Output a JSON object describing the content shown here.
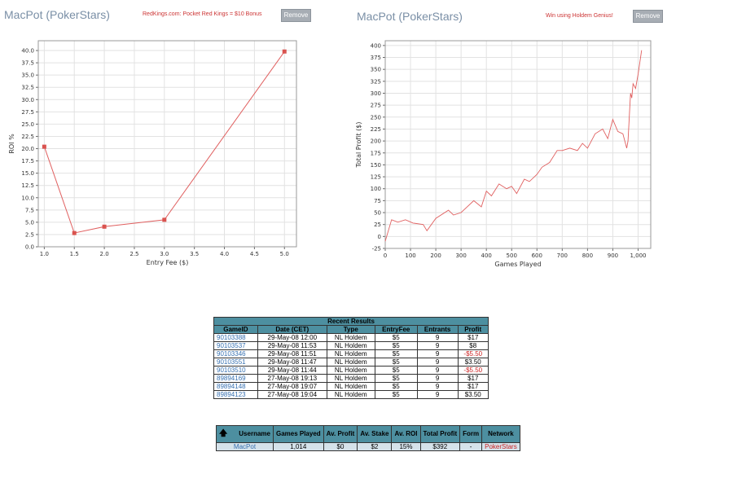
{
  "left_panel": {
    "title": "MacPot (PokerStars)",
    "promo": "RedKings.com: Pocket Red Kings = $10 Bonus",
    "remove_label": "Remove"
  },
  "right_panel": {
    "title": "MacPot (PokerStars)",
    "promo": "Win using Holdem Genius!",
    "remove_label": "Remove"
  },
  "chart_data": [
    {
      "type": "line",
      "title": "",
      "xlabel": "Entry Fee ($)",
      "ylabel": "ROI %",
      "x": [
        1.0,
        1.5,
        2.0,
        3.0,
        5.0
      ],
      "y": [
        20.4,
        2.8,
        4.1,
        5.5,
        39.8
      ],
      "xlim": [
        0.9,
        5.2
      ],
      "ylim": [
        0,
        42
      ],
      "xticks": [
        "1.0",
        "1.5",
        "2.0",
        "2.5",
        "3.0",
        "3.5",
        "4.0",
        "4.5",
        "5.0"
      ],
      "yticks": [
        "0.0",
        "2.5",
        "5.0",
        "7.5",
        "10.0",
        "12.5",
        "15.0",
        "17.5",
        "20.0",
        "22.5",
        "25.0",
        "27.5",
        "30.0",
        "32.5",
        "35.0",
        "37.5",
        "40.0"
      ],
      "grid": true,
      "color": "#e06060"
    },
    {
      "type": "line",
      "title": "",
      "xlabel": "Games Played",
      "ylabel": "Total Profit ($)",
      "xlim": [
        0,
        1050
      ],
      "ylim": [
        -25,
        410
      ],
      "xticks": [
        "0",
        "100",
        "200",
        "300",
        "400",
        "500",
        "600",
        "700",
        "800",
        "900",
        "1,000"
      ],
      "yticks": [
        "-25",
        "0",
        "25",
        "50",
        "75",
        "100",
        "125",
        "150",
        "175",
        "200",
        "225",
        "250",
        "275",
        "300",
        "325",
        "350",
        "375",
        "400"
      ],
      "x": [
        0,
        25,
        50,
        80,
        110,
        150,
        165,
        200,
        250,
        270,
        300,
        350,
        380,
        400,
        420,
        450,
        480,
        500,
        520,
        550,
        570,
        600,
        620,
        650,
        680,
        700,
        730,
        760,
        780,
        800,
        830,
        860,
        880,
        900,
        920,
        940,
        955,
        960,
        970,
        975,
        980,
        990,
        1000,
        1014
      ],
      "y": [
        -10,
        35,
        30,
        35,
        28,
        25,
        12,
        38,
        55,
        45,
        50,
        75,
        62,
        95,
        85,
        110,
        100,
        105,
        90,
        120,
        115,
        130,
        145,
        155,
        180,
        180,
        185,
        180,
        195,
        185,
        215,
        225,
        205,
        245,
        220,
        215,
        185,
        200,
        300,
        290,
        320,
        310,
        340,
        390
      ],
      "grid": true,
      "color": "#e06060"
    }
  ],
  "recent_results": {
    "title": "Recent Results",
    "headers": [
      "GameID",
      "Date (CET)",
      "Type",
      "EntryFee",
      "Entrants",
      "Profit"
    ],
    "rows": [
      [
        "90103388",
        "29-May-08 12:00",
        "NL Holdem",
        "$5",
        "9",
        "$17"
      ],
      [
        "90103537",
        "29-May-08 11:53",
        "NL Holdem",
        "$5",
        "9",
        "$8"
      ],
      [
        "90103346",
        "29-May-08 11:51",
        "NL Holdem",
        "$5",
        "9",
        "-$5.50"
      ],
      [
        "90103551",
        "29-May-08 11:47",
        "NL Holdem",
        "$5",
        "9",
        "$3.50"
      ],
      [
        "90103510",
        "29-May-08 11:44",
        "NL Holdem",
        "$5",
        "9",
        "-$5.50"
      ],
      [
        "89894169",
        "27-May-08 19:13",
        "NL Holdem",
        "$5",
        "9",
        "$17"
      ],
      [
        "89894148",
        "27-May-08 19:07",
        "NL Holdem",
        "$5",
        "9",
        "$17"
      ],
      [
        "89894123",
        "27-May-08 19:04",
        "NL Holdem",
        "$5",
        "9",
        "$3.50"
      ]
    ]
  },
  "stats": {
    "headers": [
      "Username",
      "Games Played",
      "Av. Profit",
      "Av. Stake",
      "Av. ROI",
      "Total Profit",
      "Form",
      "Network"
    ],
    "row": [
      "MacPot",
      "1,014",
      "$0",
      "$2",
      "15%",
      "$392",
      "-",
      "PokerStars"
    ]
  }
}
